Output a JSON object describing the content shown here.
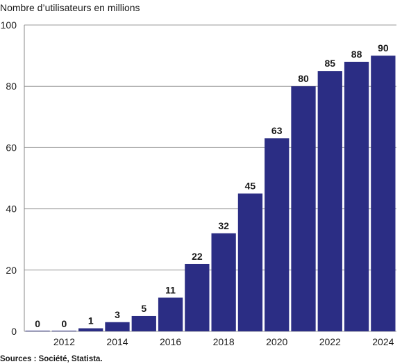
{
  "chart_data": {
    "type": "bar",
    "ylabel": "Nombre d’utilisateurs en millions",
    "categories": [
      "2011",
      "2012",
      "2013",
      "2014",
      "2015",
      "2016",
      "2017",
      "2018",
      "2019",
      "2020",
      "2021",
      "2022",
      "2023",
      "2024"
    ],
    "values": [
      0,
      0,
      1,
      3,
      5,
      11,
      22,
      32,
      45,
      63,
      80,
      85,
      88,
      90
    ],
    "data_labels": [
      "0",
      "0",
      "1",
      "3",
      "5",
      "11",
      "22",
      "32",
      "45",
      "63",
      "80",
      "85",
      "88",
      "90"
    ],
    "x_tick_labels": [
      "2012",
      "2014",
      "2016",
      "2018",
      "2020",
      "2022",
      "2024"
    ],
    "y_ticks": [
      "0",
      "20",
      "40",
      "60",
      "80",
      "100"
    ],
    "ylim": [
      0,
      100
    ],
    "grid": true,
    "bar_color": "#2b2d84",
    "source": "Sources : Société, Statista."
  }
}
